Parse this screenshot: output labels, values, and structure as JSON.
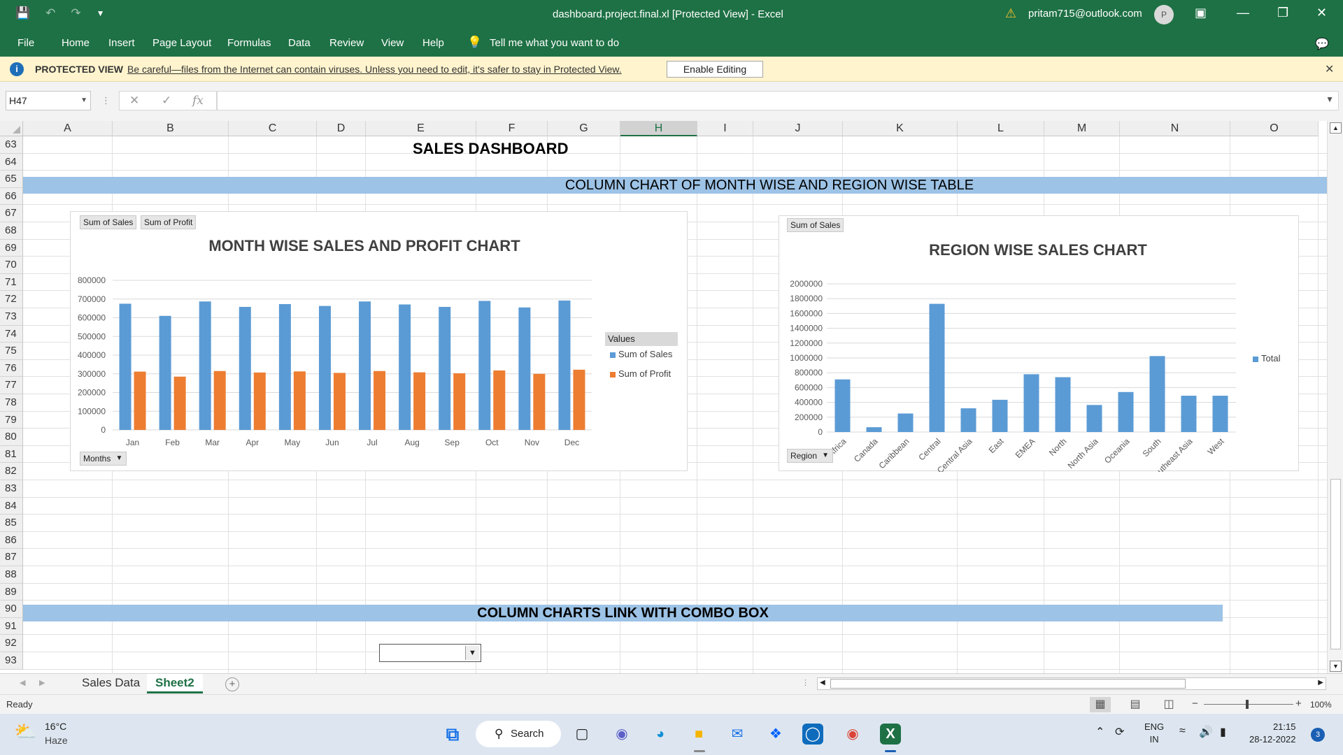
{
  "titlebar": {
    "document_title": "dashboard.project.final.xl  [Protected View]  -  Excel",
    "account_email": "pritam715@outlook.com",
    "avatar_initial": "P"
  },
  "menu": [
    "File",
    "Home",
    "Insert",
    "Page Layout",
    "Formulas",
    "Data",
    "Review",
    "View",
    "Help"
  ],
  "tell_me": "Tell me what you want to do",
  "protected_view": {
    "label": "PROTECTED VIEW",
    "message": "Be careful—files from the Internet can contain viruses. Unless you need to edit, it's safer to stay in Protected View.",
    "button": "Enable Editing"
  },
  "formula_bar": {
    "name_box": "H47",
    "fx": "fx",
    "value": ""
  },
  "columns": [
    "A",
    "B",
    "C",
    "D",
    "E",
    "F",
    "G",
    "H",
    "I",
    "J",
    "K",
    "L",
    "M",
    "N",
    "O"
  ],
  "selected_column": "H",
  "rows": [
    "63",
    "64",
    "65",
    "66",
    "67",
    "68",
    "69",
    "70",
    "71",
    "72",
    "73",
    "74",
    "75",
    "76",
    "77",
    "78",
    "79",
    "80",
    "81",
    "82",
    "83",
    "84",
    "85",
    "86",
    "87",
    "88",
    "89",
    "90",
    "91",
    "92",
    "93"
  ],
  "sheet": {
    "dashboard_title": "SALES DASHBOARD",
    "band_top": "COLUMN CHART OF MONTH WISE AND REGION WISE TABLE",
    "band_bottom": "COLUMN CHARTS LINK WITH COMBO BOX"
  },
  "chart_month": {
    "field_buttons": [
      "Sum of Sales",
      "Sum of Profit"
    ],
    "axis_button": "Months",
    "legend_title": "Values",
    "colors": {
      "sales": "#5b9bd5",
      "profit": "#ed7d31"
    }
  },
  "chart_region": {
    "field_button": "Sum of Sales",
    "axis_button": "Region",
    "color": "#5b9bd5"
  },
  "chart_data": [
    {
      "type": "bar",
      "title": "MONTH WISE SALES AND PROFIT CHART",
      "categories": [
        "Jan",
        "Feb",
        "Mar",
        "Apr",
        "May",
        "Jun",
        "Jul",
        "Aug",
        "Sep",
        "Oct",
        "Nov",
        "Dec"
      ],
      "series": [
        {
          "name": "Sum of Sales",
          "values": [
            675000,
            610000,
            687000,
            658000,
            673000,
            663000,
            687000,
            671000,
            658000,
            690000,
            655000,
            692000
          ]
        },
        {
          "name": "Sum of Profit",
          "values": [
            312000,
            285000,
            315000,
            307000,
            313000,
            305000,
            315000,
            308000,
            303000,
            318000,
            300000,
            322000
          ]
        }
      ],
      "yticks": [
        "0",
        "100000",
        "200000",
        "300000",
        "400000",
        "500000",
        "600000",
        "700000",
        "800000"
      ],
      "ylim": [
        0,
        800000
      ],
      "grid": true,
      "legend": "right"
    },
    {
      "type": "bar",
      "title": "REGION WISE SALES CHART",
      "categories": [
        "Africa",
        "Canada",
        "Caribbean",
        "Central",
        "Central Asia",
        "East",
        "EMEA",
        "North",
        "North Asia",
        "Oceania",
        "South",
        "Southeast Asia",
        "West"
      ],
      "series": [
        {
          "name": "Total",
          "values": [
            710000,
            65000,
            250000,
            1730000,
            320000,
            435000,
            780000,
            740000,
            365000,
            540000,
            1025000,
            490000,
            490000
          ]
        }
      ],
      "yticks": [
        "0",
        "200000",
        "400000",
        "600000",
        "800000",
        "1000000",
        "1200000",
        "1400000",
        "1600000",
        "1800000",
        "2000000"
      ],
      "ylim": [
        0,
        2000000
      ],
      "grid": true,
      "legend": "right"
    }
  ],
  "sheet_tabs": [
    "Sales Data",
    "Sheet2"
  ],
  "active_tab": "Sheet2",
  "status": {
    "ready": "Ready",
    "zoom": "100%",
    "zoom_minus": "−",
    "zoom_plus": "+"
  },
  "taskbar": {
    "temperature": "16°C",
    "condition": "Haze",
    "search": "Search",
    "language": "ENG",
    "region": "IN",
    "time": "21:15",
    "date": "28-12-2022",
    "notifications": "3"
  }
}
